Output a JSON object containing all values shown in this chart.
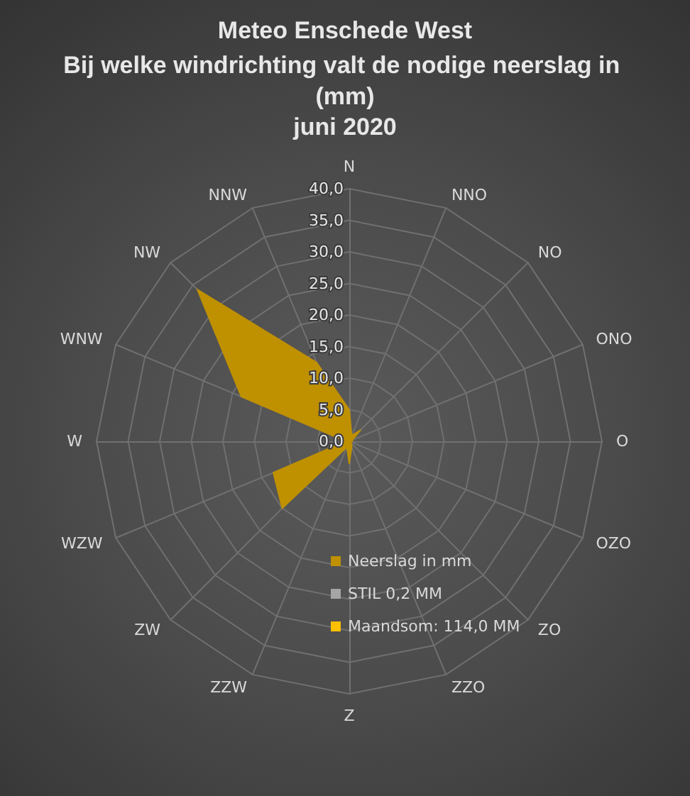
{
  "chart_data": {
    "type": "radar",
    "title": "Meteo Enschede West",
    "subtitle": "Bij welke windrichting valt de nodige neerslag in (mm)",
    "annotations": [
      "juni 2020"
    ],
    "categories": [
      "N",
      "NNO",
      "NO",
      "ONO",
      "O",
      "OZO",
      "ZO",
      "ZZO",
      "Z",
      "ZZW",
      "ZW",
      "WZW",
      "W",
      "WNW",
      "NW",
      "NNW"
    ],
    "series": [
      {
        "name": "Neerslag in mm",
        "color": "#bf9000",
        "values": [
          5,
          1,
          2.5,
          0.5,
          0.5,
          0,
          0.5,
          1,
          3.5,
          1,
          15,
          13,
          0.5,
          18.5,
          34,
          13.5
        ]
      },
      {
        "name": "STIL 0,2 MM",
        "color": "#a5a5a5",
        "values": [
          null,
          null,
          null,
          null,
          null,
          null,
          null,
          null,
          null,
          null,
          null,
          null,
          null,
          null,
          null,
          null
        ]
      },
      {
        "name": "Maandsom: 114,0 MM",
        "color": "#ffc000",
        "values": [
          null,
          null,
          null,
          null,
          null,
          null,
          null,
          null,
          null,
          null,
          null,
          null,
          null,
          null,
          null,
          null
        ]
      }
    ],
    "ylim": [
      0,
      40
    ],
    "yticks": [
      {
        "value": 0,
        "label": "0,0"
      },
      {
        "value": 5,
        "label": "5,0"
      },
      {
        "value": 10,
        "label": "10,0"
      },
      {
        "value": 15,
        "label": "15,0"
      },
      {
        "value": 20,
        "label": "20,0"
      },
      {
        "value": 25,
        "label": "25,0"
      },
      {
        "value": 30,
        "label": "30,0"
      },
      {
        "value": 35,
        "label": "35,0"
      },
      {
        "value": 40,
        "label": "40,0"
      }
    ],
    "grid": true,
    "legend": "bottom"
  }
}
